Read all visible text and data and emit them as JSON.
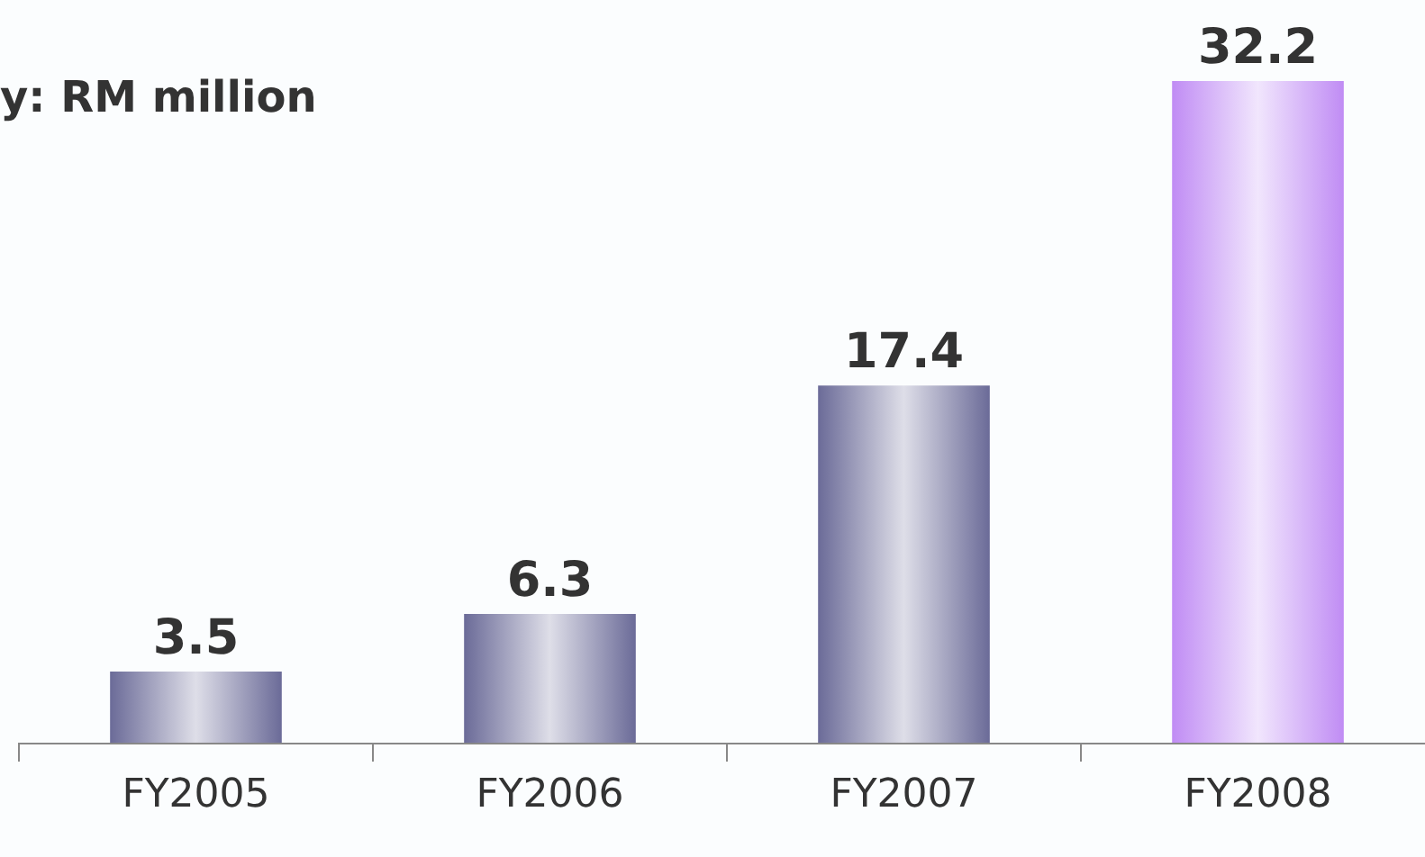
{
  "chart_data": {
    "type": "bar",
    "title": "y:  RM million",
    "categories": [
      "FY2005",
      "FY2006",
      "FY2007",
      "FY2008"
    ],
    "values": [
      3.5,
      6.3,
      17.4,
      32.2
    ],
    "colors": [
      "#6b6b98",
      "#6b6b98",
      "#6b6b98",
      "#c08cf4"
    ],
    "data_labels": true
  }
}
